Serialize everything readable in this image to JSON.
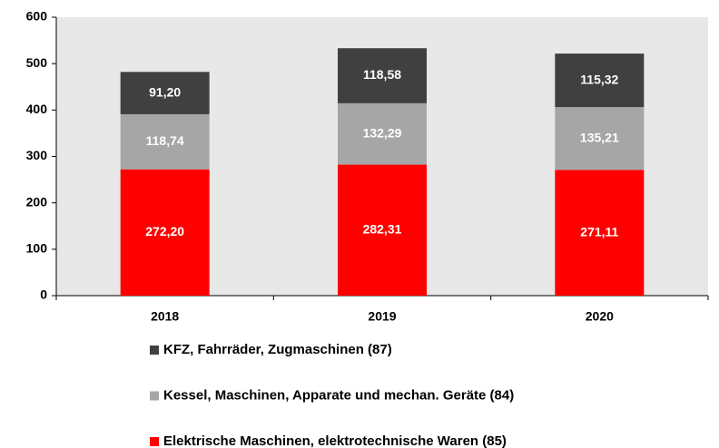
{
  "chart_data": {
    "type": "bar",
    "stacked": true,
    "categories": [
      "2018",
      "2019",
      "2020"
    ],
    "series": [
      {
        "name": "Elektrische Maschinen, elektrotechnische Waren (85)",
        "color": "#ff0000",
        "values": [
          272.2,
          282.31,
          271.11
        ],
        "value_labels": [
          "272,20",
          "282,31",
          "271,11"
        ]
      },
      {
        "name": "Kessel, Maschinen, Apparate und mechan. Geräte (84)",
        "color": "#a6a6a6",
        "values": [
          118.74,
          132.29,
          135.21
        ],
        "value_labels": [
          "118,74",
          "132,29",
          "135,21"
        ]
      },
      {
        "name": "KFZ, Fahrräder, Zugmaschinen  (87)",
        "color": "#404040",
        "values": [
          91.2,
          118.58,
          115.32
        ],
        "value_labels": [
          "91,20",
          "118,58",
          "115,32"
        ]
      }
    ],
    "ylim": [
      0,
      600
    ],
    "yticks": [
      0,
      100,
      200,
      300,
      400,
      500,
      600
    ],
    "legend": "bottom"
  }
}
